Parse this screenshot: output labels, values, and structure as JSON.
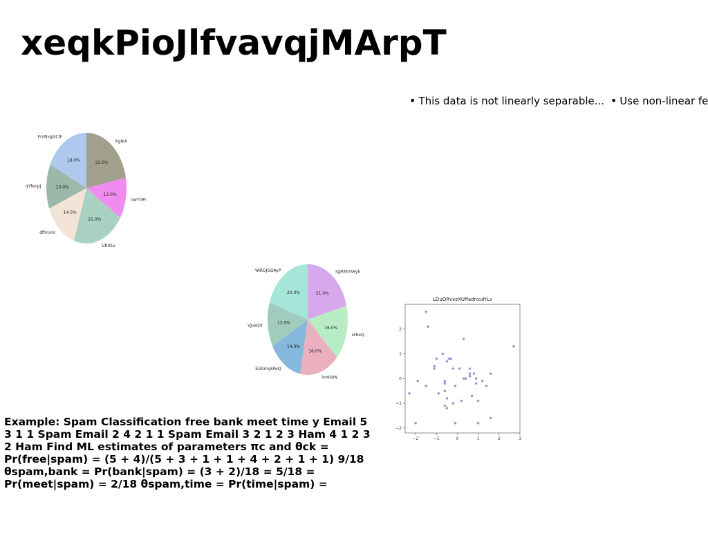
{
  "page": {
    "title": "xeqkPioJlfvavqjMArpT",
    "bullets": [
      "This data is not linearly separable...",
      "Use non-linear feature"
    ],
    "body_text": "Example: Spam Classification free bank meet time y Email 5 3 1 1 Spam Email 2 4 2 1 1 Spam Email 3 2 1 2 3 Ham 4 1 2 3 2 Ham Find ML estimates of parameters πc and θck = Pr(free|spam) = (5 + 4)/(5 + 3 + 1 + 1 + 4 + 2 + 1 + 1) 9/18 θspam,bank = Pr(bank|spam) = (3 + 2)/18 = 5/18 = Pr(meet|spam) = 2/18 θspam,time = Pr(time|spam) ="
  },
  "chart_data": [
    {
      "type": "pie",
      "labels": [
        "KgleX",
        "owYGFr",
        "URXtu",
        "dfhnxm",
        "qYfenpJ",
        "FmNvgGCIF"
      ],
      "values": [
        22.0,
        12.0,
        21.0,
        14.0,
        13.0,
        18.0
      ],
      "value_labels": [
        "22.0%",
        "12.0%",
        "21.0%",
        "14.0%",
        "13.0%",
        "18.0%"
      ],
      "colors": [
        "#a0a08c",
        "#f08cf0",
        "#a9d0c0",
        "#f2e4d6",
        "#9cb8a8",
        "#aec8ee"
      ],
      "start": "top",
      "direction": "clockwise"
    },
    {
      "type": "pie",
      "labels": [
        "sgIKNmteyk",
        "xHIeQ",
        "lvIrHRN",
        "EUUmykPeQ",
        "VJusQV",
        "YARGJGOAyP"
      ],
      "values": [
        21.0,
        16.0,
        16.0,
        14.0,
        13.0,
        20.0
      ],
      "value_labels": [
        "21.0%",
        "16.0%",
        "16.0%",
        "14.0%",
        "13.0%",
        "20.0%"
      ],
      "colors": [
        "#d8a8ec",
        "#b8ecc4",
        "#eab0c0",
        "#84b8dc",
        "#a0ccbe",
        "#a6e6d8"
      ],
      "start": "top",
      "direction": "clockwise"
    },
    {
      "type": "scatter",
      "title": "LDuQRvvzXUffadnxufrLv",
      "xlim": [
        -2.5,
        3
      ],
      "ylim": [
        -2.2,
        3
      ],
      "xticks": [
        -2,
        -1,
        0,
        1,
        2,
        3
      ],
      "yticks": [
        -2,
        -1,
        0,
        1,
        2
      ],
      "color": "#9a9ad0",
      "x": [
        -1.5,
        -1.4,
        -2.3,
        -1.9,
        -2.0,
        -1.5,
        -1.1,
        -1.1,
        -1.0,
        -0.9,
        -0.7,
        -0.6,
        -0.6,
        -0.6,
        -0.6,
        -0.5,
        -0.5,
        -0.5,
        -0.4,
        -0.3,
        -0.2,
        -0.2,
        -0.1,
        -0.1,
        0.1,
        0.2,
        0.3,
        0.3,
        0.4,
        0.6,
        0.6,
        0.6,
        0.7,
        0.8,
        0.9,
        0.9,
        1.0,
        1.0,
        1.2,
        1.4,
        1.6,
        1.6,
        2.7
      ],
      "y": [
        2.7,
        2.1,
        -0.6,
        -0.1,
        -1.8,
        -0.3,
        0.5,
        0.4,
        0.8,
        -0.6,
        1.0,
        -0.2,
        -0.1,
        -0.5,
        -1.1,
        -0.8,
        -1.2,
        0.7,
        0.8,
        0.8,
        0.4,
        -1.0,
        -0.3,
        -1.8,
        0.4,
        -0.9,
        1.6,
        0.0,
        0.0,
        0.4,
        0.1,
        0.2,
        -0.7,
        0.2,
        0.0,
        -0.2,
        -0.9,
        -1.8,
        -0.1,
        -0.3,
        -1.6,
        0.2,
        1.3
      ]
    }
  ]
}
